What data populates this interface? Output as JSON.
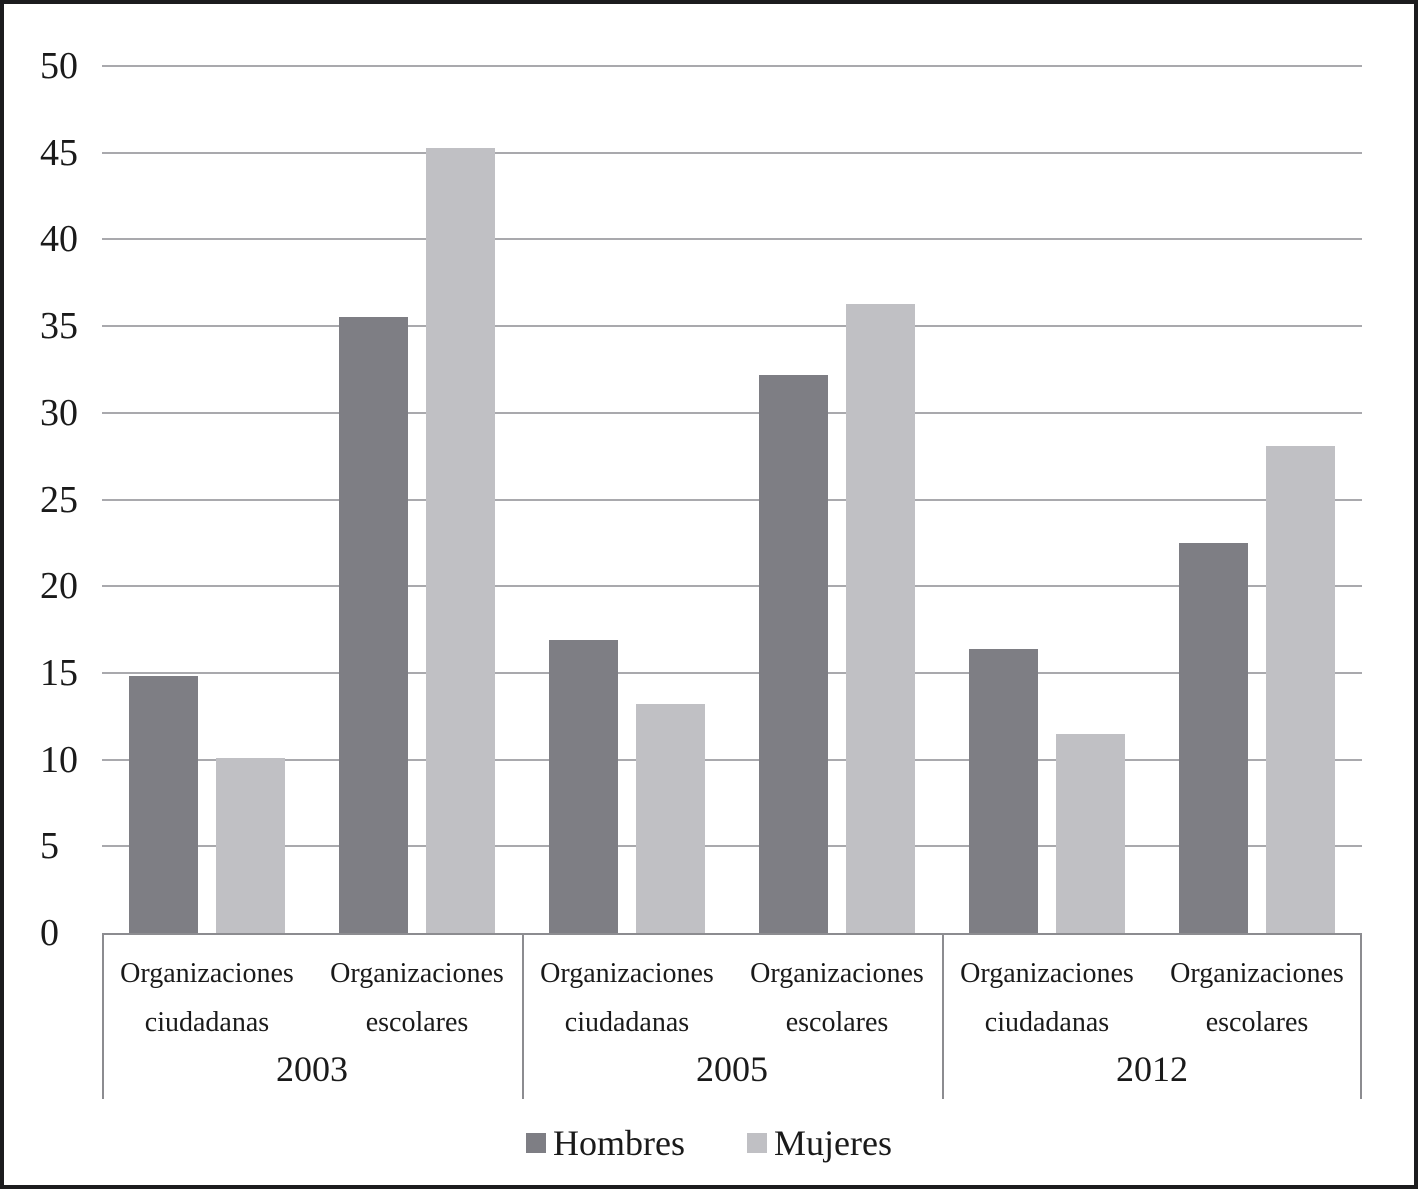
{
  "chart_data": {
    "type": "bar",
    "title": "",
    "x_groups": [
      "2003",
      "2005",
      "2012"
    ],
    "x_categories": [
      "Organizaciones ciudadanas",
      "Organizaciones escolares"
    ],
    "series": [
      {
        "name": "Hombres",
        "color": "#7e7e84",
        "values": [
          [
            14.8,
            35.5
          ],
          [
            16.9,
            32.2
          ],
          [
            16.4,
            22.5
          ]
        ]
      },
      {
        "name": "Mujeres",
        "color": "#c0c0c4",
        "values": [
          [
            10.1,
            45.3
          ],
          [
            13.2,
            36.3
          ],
          [
            11.5,
            28.1
          ]
        ]
      }
    ],
    "ylim": [
      0,
      50
    ],
    "ytick_step": 5,
    "ytick_labels": [
      "0",
      "5",
      "10",
      "15",
      "20",
      "25",
      "30",
      "35",
      "40",
      "45",
      "50"
    ],
    "grid": true,
    "legend_position": "bottom",
    "colors": {
      "grid": "#a9a9ad",
      "axis": "#8c8c90",
      "text": "#1a1a1a",
      "frame_border": "#1c1c1e",
      "background": "#ffffff"
    }
  }
}
